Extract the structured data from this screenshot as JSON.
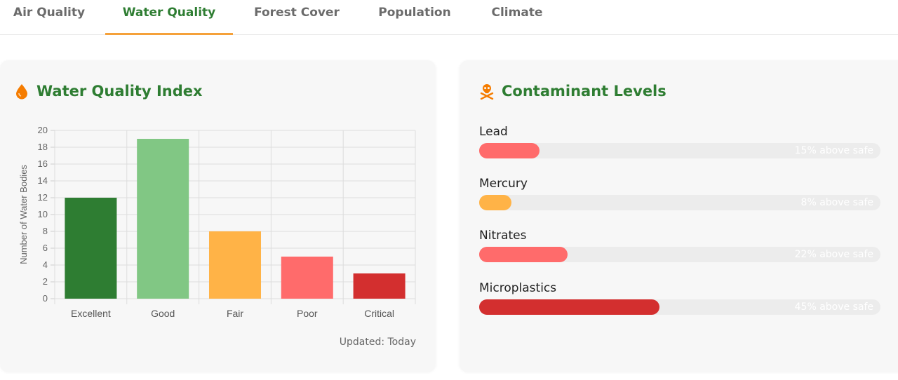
{
  "tabs": [
    {
      "label": "Air Quality",
      "active": false
    },
    {
      "label": "Water Quality",
      "active": true
    },
    {
      "label": "Forest Cover",
      "active": false
    },
    {
      "label": "Population",
      "active": false
    },
    {
      "label": "Climate",
      "active": false
    }
  ],
  "wqi_card": {
    "title": "Water Quality Index",
    "icon": "water-drop-icon",
    "updated": "Updated: Today"
  },
  "contaminant_card": {
    "title": "Contaminant Levels",
    "icon": "skull-crossbones-icon",
    "items": [
      {
        "label": "Lead",
        "percent": 15,
        "text": "15% above safe",
        "color": "#ff6b6b"
      },
      {
        "label": "Mercury",
        "percent": 8,
        "text": "8% above safe",
        "color": "#ffb347"
      },
      {
        "label": "Nitrates",
        "percent": 22,
        "text": "22% above safe",
        "color": "#ff6b6b"
      },
      {
        "label": "Microplastics",
        "percent": 45,
        "text": "45% above safe",
        "color": "#d32f2f"
      }
    ]
  },
  "colors": {
    "accent": "#2e7d32",
    "tab_underline": "#f5a13a",
    "icon_orange": "#f57c00"
  },
  "chart_data": {
    "type": "bar",
    "categories": [
      "Excellent",
      "Good",
      "Fair",
      "Poor",
      "Critical"
    ],
    "values": [
      12,
      19,
      8,
      5,
      3
    ],
    "colors": [
      "#2e7d32",
      "#81c784",
      "#ffb347",
      "#ff6b6b",
      "#d32f2f"
    ],
    "title": "",
    "xlabel": "",
    "ylabel": "Number of Water Bodies",
    "ylim": [
      0,
      20
    ],
    "yticks": [
      0,
      2,
      4,
      6,
      8,
      10,
      12,
      14,
      16,
      18,
      20
    ],
    "grid": true,
    "legend": "none"
  }
}
